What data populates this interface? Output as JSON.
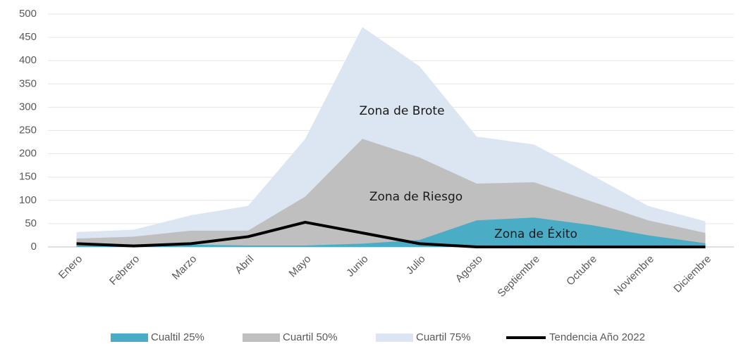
{
  "chart_data": {
    "type": "area",
    "categories": [
      "Enero",
      "Febrero",
      "Marzo",
      "Abril",
      "Mayo",
      "Junio",
      "Julio",
      "Agosto",
      "Septiembre",
      "Octubre",
      "Noviembre",
      "Diciembre"
    ],
    "series": [
      {
        "name": "Cualtil 25%",
        "color": "#4bacc6",
        "kind": "area",
        "values": [
          3,
          3,
          5,
          3,
          3,
          7,
          15,
          57,
          63,
          47,
          25,
          8
        ]
      },
      {
        "name": "Cuartil 50%",
        "color": "#bfbfbf",
        "kind": "area",
        "values": [
          18,
          22,
          35,
          35,
          108,
          232,
          192,
          136,
          139,
          98,
          57,
          30
        ]
      },
      {
        "name": "Cuartil 75%",
        "color": "#dce6f2",
        "kind": "area",
        "values": [
          32,
          37,
          68,
          88,
          232,
          472,
          388,
          237,
          220,
          155,
          88,
          55
        ]
      },
      {
        "name": "Tendencia Año 2022",
        "color": "#000000",
        "kind": "line",
        "values": [
          7,
          2,
          7,
          22,
          53,
          30,
          7,
          0,
          0,
          0,
          0,
          0
        ]
      }
    ],
    "annotations": [
      "Zona de Brote",
      "Zona de Riesgo",
      "Zona de Éxito"
    ],
    "ylim": [
      0,
      500
    ],
    "yticks": [
      0,
      50,
      100,
      150,
      200,
      250,
      300,
      350,
      400,
      450,
      500
    ],
    "grid": true,
    "legend": "bottom"
  }
}
